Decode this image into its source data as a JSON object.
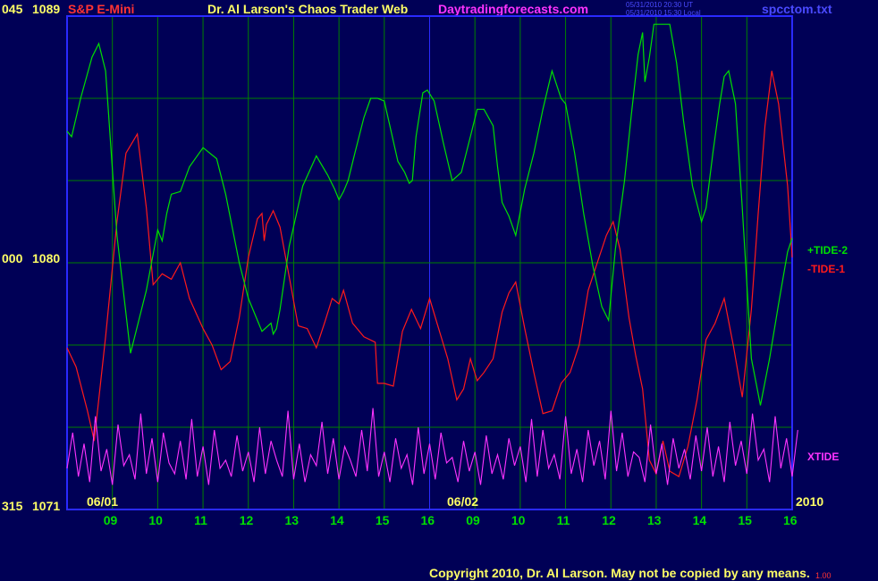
{
  "header": {
    "instrument": "S&P E-Mini",
    "title": "Dr. Al Larson's Chaos Trader Web",
    "site": "Daytradingforecasts.com",
    "time_ut": "05/31/2010 20:30 UT",
    "time_local": "05/31/2010 15:30 Local",
    "filename": "spcctom.txt"
  },
  "y_axis": {
    "top": {
      "angle": "045",
      "price": "1089"
    },
    "mid": {
      "angle": "000",
      "price": "1080"
    },
    "bottom": {
      "angle": "315",
      "price": "1071"
    }
  },
  "x_axis": {
    "hour_ticks": [
      "09",
      "10",
      "11",
      "12",
      "13",
      "14",
      "15",
      "16",
      "09",
      "10",
      "11",
      "12",
      "13",
      "14",
      "15",
      "16"
    ],
    "date_labels": [
      "06/01",
      "06/02"
    ],
    "year": "2010"
  },
  "footer": {
    "copyright": "Copyright 2010, Dr. Al Larson. May not be copied by any means.",
    "stamp": "1.00"
  },
  "colors": {
    "background": "#000056",
    "grid": "#008000",
    "frame": "#2a2aff",
    "tide_plus": "#00e000",
    "tide_minus": "#ff1a1a",
    "xtide": "#ff33ff",
    "header_instrument": "#ff3333",
    "header_title": "#ffff66",
    "header_site": "#ff33ff",
    "axis_text": "#ffff66",
    "date_text": "#ffff66",
    "hour_text": "#00e000"
  },
  "chart_data": {
    "type": "line",
    "ylim": [
      1071,
      1089
    ],
    "x_units": "session hour index (0 = 06/01 08:00, 16 = 06/02 16:00)",
    "xlim": [
      0,
      16
    ],
    "series": [
      {
        "name": "+TIDE-2",
        "x": [
          0,
          0.1,
          0.3,
          0.55,
          0.7,
          0.85,
          1.1,
          1.4,
          1.75,
          2.0,
          2.1,
          2.2,
          2.3,
          2.5,
          2.7,
          3.0,
          3.3,
          3.5,
          3.8,
          4.0,
          4.3,
          4.5,
          4.55,
          4.62,
          4.7,
          4.9,
          5.2,
          5.5,
          5.75,
          5.9,
          6.0,
          6.1,
          6.2,
          6.35,
          6.55,
          6.7,
          6.85,
          7.0,
          7.15,
          7.3,
          7.45,
          7.55,
          7.62,
          7.7,
          7.85,
          7.95,
          8.1,
          8.3,
          8.5,
          8.7,
          8.9,
          9.05,
          9.2,
          9.4,
          9.5,
          9.6,
          9.75,
          9.9,
          10.1,
          10.3,
          10.5,
          10.7,
          10.9,
          11.0,
          11.2,
          11.4,
          11.6,
          11.8,
          11.95,
          12.1,
          12.3,
          12.45,
          12.6,
          12.7,
          12.75,
          12.85,
          12.95,
          13.1,
          13.3,
          13.45,
          13.6,
          13.8,
          14.0,
          14.1,
          14.25,
          14.4,
          14.5,
          14.6,
          14.75,
          14.9,
          15.1,
          15.3,
          15.5,
          15.7,
          15.9,
          16.0
        ],
        "values": [
          1084.8,
          1084.6,
          1086.0,
          1087.5,
          1088.0,
          1087.0,
          1081.0,
          1076.7,
          1079.0,
          1081.2,
          1080.8,
          1081.8,
          1082.5,
          1082.6,
          1083.5,
          1084.2,
          1083.8,
          1082.5,
          1080.0,
          1078.7,
          1077.5,
          1077.8,
          1077.4,
          1077.6,
          1078.3,
          1080.6,
          1082.8,
          1083.9,
          1083.2,
          1082.7,
          1082.3,
          1082.6,
          1083.0,
          1084.0,
          1085.3,
          1086.0,
          1086.0,
          1085.9,
          1084.8,
          1083.7,
          1083.3,
          1082.9,
          1083.0,
          1084.6,
          1086.2,
          1086.3,
          1085.9,
          1084.4,
          1083.0,
          1083.3,
          1084.6,
          1085.6,
          1085.6,
          1085.0,
          1083.5,
          1082.2,
          1081.7,
          1081.0,
          1082.7,
          1084.0,
          1085.6,
          1087.0,
          1086.0,
          1085.8,
          1084.0,
          1081.8,
          1079.9,
          1078.4,
          1077.9,
          1080.5,
          1083.0,
          1085.4,
          1087.6,
          1088.4,
          1086.6,
          1087.5,
          1088.7,
          1088.7,
          1088.7,
          1087.3,
          1085.2,
          1082.8,
          1081.5,
          1082.0,
          1084.0,
          1085.8,
          1086.8,
          1087.0,
          1085.8,
          1082.0,
          1076.5,
          1074.8,
          1076.5,
          1078.5,
          1080.4,
          1080.9
        ]
      },
      {
        "name": "-TIDE-1",
        "x": [
          0,
          0.2,
          0.45,
          0.6,
          0.85,
          1.1,
          1.3,
          1.55,
          1.75,
          1.9,
          2.1,
          2.3,
          2.5,
          2.7,
          3.0,
          3.2,
          3.4,
          3.6,
          3.8,
          4.0,
          4.2,
          4.3,
          4.35,
          4.4,
          4.55,
          4.7,
          4.9,
          5.1,
          5.3,
          5.5,
          5.7,
          5.85,
          6.0,
          6.1,
          6.3,
          6.55,
          6.8,
          6.85,
          7.0,
          7.2,
          7.4,
          7.6,
          7.8,
          8.0,
          8.2,
          8.4,
          8.6,
          8.75,
          8.9,
          9.05,
          9.2,
          9.4,
          9.6,
          9.75,
          9.9,
          10.1,
          10.3,
          10.5,
          10.7,
          10.9,
          11.1,
          11.3,
          11.5,
          11.7,
          11.9,
          12.05,
          12.2,
          12.4,
          12.55,
          12.7,
          12.85,
          13.0,
          13.15,
          13.3,
          13.5,
          13.7,
          13.9,
          14.1,
          14.3,
          14.5,
          14.7,
          14.9,
          15.1,
          15.25,
          15.4,
          15.55,
          15.7,
          15.9,
          16.0
        ],
        "values": [
          1076.9,
          1076.2,
          1074.6,
          1073.5,
          1077.3,
          1081.5,
          1084.0,
          1084.7,
          1082.0,
          1079.2,
          1079.6,
          1079.4,
          1080.0,
          1078.7,
          1077.6,
          1077.0,
          1076.1,
          1076.4,
          1078.0,
          1080.2,
          1081.6,
          1081.8,
          1080.8,
          1081.4,
          1081.9,
          1081.3,
          1079.5,
          1077.7,
          1077.6,
          1076.9,
          1077.9,
          1078.7,
          1078.5,
          1079.0,
          1077.8,
          1077.3,
          1077.1,
          1075.6,
          1075.6,
          1075.5,
          1077.5,
          1078.3,
          1077.6,
          1078.7,
          1077.6,
          1076.5,
          1075.0,
          1075.4,
          1076.5,
          1075.7,
          1076.0,
          1076.5,
          1078.2,
          1078.9,
          1079.3,
          1077.6,
          1076.0,
          1074.5,
          1074.6,
          1075.6,
          1076.0,
          1077.0,
          1079.0,
          1080.0,
          1081.0,
          1081.5,
          1080.5,
          1078.0,
          1076.6,
          1075.4,
          1072.8,
          1072.3,
          1073.5,
          1072.4,
          1072.2,
          1073.3,
          1075.0,
          1077.2,
          1077.8,
          1078.7,
          1077.0,
          1075.1,
          1078.3,
          1081.8,
          1085.0,
          1087.0,
          1085.8,
          1082.8,
          1080.2
        ]
      },
      {
        "name": "XTIDE",
        "x_step": 0.125,
        "values": [
          1072.5,
          1073.8,
          1072.2,
          1073.4,
          1072.0,
          1074.4,
          1072.4,
          1073.2,
          1071.9,
          1074.1,
          1072.6,
          1073.0,
          1072.1,
          1074.5,
          1072.3,
          1073.6,
          1072.0,
          1073.8,
          1072.7,
          1072.3,
          1073.5,
          1072.1,
          1074.3,
          1072.2,
          1073.3,
          1071.9,
          1073.9,
          1072.5,
          1072.8,
          1072.2,
          1073.7,
          1072.4,
          1073.1,
          1072.0,
          1074.0,
          1072.3,
          1073.5,
          1072.8,
          1072.2,
          1074.6,
          1072.1,
          1073.4,
          1072.0,
          1073.0,
          1072.6,
          1074.2,
          1072.3,
          1073.6,
          1072.1,
          1073.3,
          1072.8,
          1072.2,
          1073.9,
          1072.4,
          1074.7,
          1072.2,
          1073.1,
          1072.0,
          1073.6,
          1072.5,
          1073.0,
          1071.9,
          1074.0,
          1072.3,
          1073.4,
          1072.1,
          1073.8,
          1072.7,
          1072.9,
          1072.0,
          1073.5,
          1072.4,
          1073.1,
          1071.9,
          1073.7,
          1072.3,
          1073.0,
          1072.1,
          1073.6,
          1072.6,
          1073.3,
          1072.0,
          1074.3,
          1072.2,
          1073.9,
          1072.5,
          1073.0,
          1072.1,
          1074.4,
          1072.3,
          1073.2,
          1072.0,
          1073.9,
          1072.6,
          1073.5,
          1072.1,
          1074.6,
          1072.4,
          1073.8,
          1072.2,
          1073.1,
          1072.9,
          1072.0,
          1074.1,
          1072.3,
          1073.4,
          1071.9,
          1073.6,
          1072.5,
          1073.2,
          1072.1,
          1073.7,
          1072.4,
          1074.0,
          1072.2,
          1073.3,
          1072.0,
          1074.2,
          1072.6,
          1073.5,
          1072.3,
          1074.5,
          1072.8,
          1073.2,
          1072.0,
          1074.4,
          1072.5,
          1073.6,
          1072.2,
          1073.9
        ]
      }
    ],
    "legend": [
      "+TIDE-2",
      "-TIDE-1",
      "XTIDE"
    ],
    "grid": true
  }
}
